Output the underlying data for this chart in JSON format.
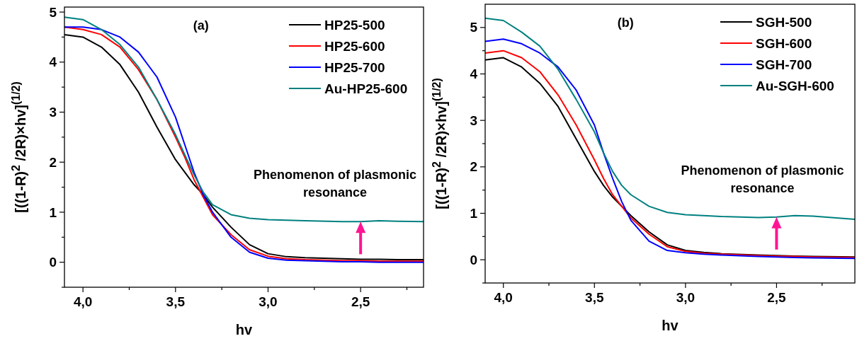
{
  "chart_data": [
    {
      "type": "line",
      "xlabel": "hv",
      "ylabel": "[((1-R)$^{2}$ /2R)×hv]$^{(1/2)}$",
      "legend": "top right",
      "grid": false,
      "line_style": "solid",
      "marker": "none",
      "xlim": [
        4.1,
        2.16
      ],
      "ylim": [
        -0.5,
        5.1
      ],
      "xticks": [
        {
          "value": 4,
          "label": "4,0"
        },
        {
          "value": 3.75,
          "label": null
        },
        {
          "value": 3.5,
          "label": "3,5"
        },
        {
          "value": 3.25,
          "label": null
        },
        {
          "value": 3,
          "label": "3,0"
        },
        {
          "value": 2.75,
          "label": null
        },
        {
          "value": 2.5,
          "label": "2,5"
        },
        {
          "value": 2.25,
          "label": null
        }
      ],
      "yticks": [
        {
          "value": -0.5,
          "label": null
        },
        0,
        {
          "value": 0.5,
          "label": null
        },
        1,
        {
          "value": 1.5,
          "label": null
        },
        2,
        {
          "value": 2.5,
          "label": null
        },
        3,
        {
          "value": 3.5,
          "label": null
        },
        4,
        {
          "value": 4.5,
          "label": null
        },
        5
      ],
      "x": [
        4.1,
        4.0,
        3.9,
        3.8,
        3.7,
        3.6,
        3.5,
        3.45,
        3.4,
        3.35,
        3.3,
        3.2,
        3.1,
        3.0,
        2.9,
        2.8,
        2.6,
        2.5,
        2.4,
        2.3,
        2.16
      ],
      "series": [
        {
          "name": "HP25-500",
          "color": "#000000",
          "values": [
            4.55,
            4.5,
            4.3,
            3.95,
            3.4,
            2.7,
            2.05,
            1.8,
            1.55,
            1.35,
            1.1,
            0.7,
            0.35,
            0.17,
            0.11,
            0.09,
            0.07,
            0.06,
            0.06,
            0.05,
            0.05
          ]
        },
        {
          "name": "HP25-600",
          "color": "#ff0000",
          "values": [
            4.7,
            4.65,
            4.55,
            4.3,
            3.85,
            3.25,
            2.5,
            2.1,
            1.65,
            1.3,
            0.95,
            0.55,
            0.25,
            0.12,
            0.07,
            0.05,
            0.03,
            0.03,
            0.02,
            0.02,
            0.02
          ]
        },
        {
          "name": "HP25-700",
          "color": "#0000ff",
          "values": [
            4.7,
            4.7,
            4.65,
            4.5,
            4.2,
            3.7,
            2.9,
            2.35,
            1.8,
            1.35,
            1.0,
            0.5,
            0.2,
            0.08,
            0.04,
            0.03,
            0.01,
            0.01,
            0.0,
            0.0,
            0.0
          ]
        },
        {
          "name": "Au-HP25-600",
          "color": "#008080",
          "values": [
            4.9,
            4.85,
            4.65,
            4.35,
            3.9,
            3.25,
            2.55,
            2.15,
            1.75,
            1.4,
            1.15,
            0.95,
            0.88,
            0.85,
            0.84,
            0.83,
            0.81,
            0.81,
            0.83,
            0.82,
            0.81
          ]
        }
      ],
      "annotations": [
        "(a)",
        {
          "text": "Phenomenon of plasmonic\nresonance",
          "x": 2.5,
          "y": 0.81
        }
      ]
    },
    {
      "type": "line",
      "xlabel": "hv",
      "ylabel": "[((1-R)$^{2}$ /2R)×hv]$^{(1/2)}$",
      "legend": "top right",
      "grid": false,
      "line_style": "solid",
      "marker": "none",
      "xlim": [
        4.1,
        2.07
      ],
      "ylim": [
        -0.5,
        5.5
      ],
      "xticks": [
        {
          "value": 4,
          "label": "4,0"
        },
        {
          "value": 3.75,
          "label": null
        },
        {
          "value": 3.5,
          "label": "3,5"
        },
        {
          "value": 3.25,
          "label": null
        },
        {
          "value": 3,
          "label": "3,0"
        },
        {
          "value": 2.75,
          "label": null
        },
        {
          "value": 2.5,
          "label": "2,5"
        },
        {
          "value": 2.25,
          "label": null
        }
      ],
      "yticks": [
        {
          "value": -0.5,
          "label": null
        },
        0,
        {
          "value": 0.5,
          "label": null
        },
        1,
        {
          "value": 1.5,
          "label": null
        },
        2,
        {
          "value": 2.5,
          "label": null
        },
        3,
        {
          "value": 3.5,
          "label": null
        },
        4,
        {
          "value": 4.5,
          "label": null
        },
        5
      ],
      "x": [
        4.1,
        4.0,
        3.9,
        3.8,
        3.7,
        3.6,
        3.5,
        3.45,
        3.4,
        3.35,
        3.3,
        3.2,
        3.1,
        3.0,
        2.9,
        2.8,
        2.6,
        2.5,
        2.4,
        2.3,
        2.07
      ],
      "series": [
        {
          "name": "SGH-500",
          "color": "#000000",
          "values": [
            4.3,
            4.35,
            4.15,
            3.8,
            3.3,
            2.6,
            1.9,
            1.6,
            1.35,
            1.15,
            0.95,
            0.6,
            0.32,
            0.2,
            0.16,
            0.13,
            0.1,
            0.09,
            0.08,
            0.07,
            0.06
          ]
        },
        {
          "name": "SGH-600",
          "color": "#ff0000",
          "values": [
            4.45,
            4.5,
            4.35,
            4.05,
            3.55,
            2.9,
            2.15,
            1.75,
            1.4,
            1.15,
            0.9,
            0.55,
            0.28,
            0.18,
            0.14,
            0.12,
            0.09,
            0.08,
            0.07,
            0.06,
            0.05
          ]
        },
        {
          "name": "SGH-700",
          "color": "#0000ff",
          "values": [
            4.7,
            4.75,
            4.65,
            4.45,
            4.15,
            3.65,
            2.9,
            2.3,
            1.75,
            1.25,
            0.85,
            0.4,
            0.2,
            0.15,
            0.12,
            0.1,
            0.07,
            0.06,
            0.05,
            0.04,
            0.03
          ]
        },
        {
          "name": "Au-SGH-600",
          "color": "#008080",
          "values": [
            5.2,
            5.15,
            4.9,
            4.6,
            4.1,
            3.45,
            2.75,
            2.3,
            1.9,
            1.6,
            1.4,
            1.15,
            1.02,
            0.97,
            0.95,
            0.93,
            0.91,
            0.92,
            0.95,
            0.94,
            0.87
          ]
        }
      ],
      "annotations": [
        "(b)",
        {
          "text": "Phenomenon of plasmonic\nresonance",
          "x": 2.5,
          "y": 0.92
        }
      ]
    }
  ]
}
